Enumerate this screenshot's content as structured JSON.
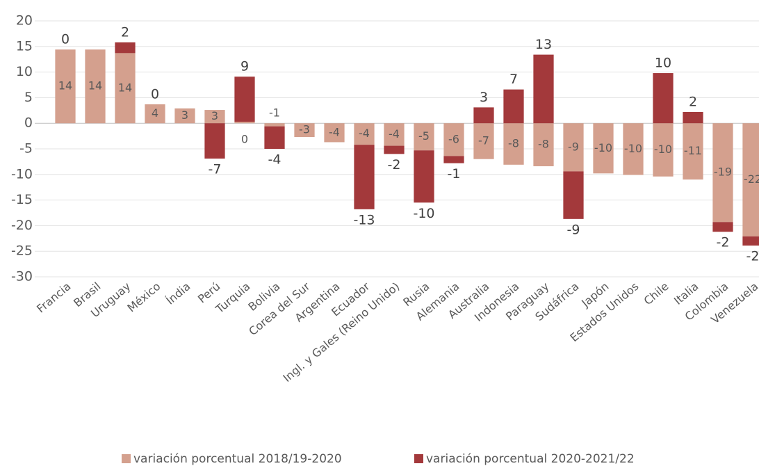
{
  "chart_data": {
    "type": "bar",
    "stacked": true,
    "categories": [
      "Francia",
      "Brasil",
      "Uruguay",
      "México",
      "Índia",
      "Perú",
      "Turquia",
      "Bolivia",
      "Corea del Sur",
      "Argentina",
      "Ecuador",
      "Ingl. y Gales (Reino Unido)",
      "Rusia",
      "Alemania",
      "Australia",
      "Indonesia",
      "Paraguay",
      "Sudáfrica",
      "Japón",
      "Estados Unidos",
      "Chile",
      "Italia",
      "Colombia",
      "Venezuela"
    ],
    "series": [
      {
        "name": "variación porcentual 2018/19-2020",
        "color": "#d4a08e",
        "values": [
          14.4,
          14.4,
          13.7,
          3.7,
          2.9,
          2.6,
          0.3,
          -0.6,
          -2.7,
          -3.7,
          -4.2,
          -4.4,
          -5.3,
          -6.4,
          -7.0,
          -8.1,
          -8.4,
          -9.4,
          -9.8,
          -10.1,
          -10.4,
          -11.0,
          -19.3,
          -22.1
        ],
        "value_labels": [
          "14",
          "14",
          "14",
          "4",
          "3",
          "3",
          "0",
          "-1",
          "-3",
          "-4",
          "-4",
          "-4",
          "-5",
          "-6",
          "-7",
          "-8",
          "-8",
          "-9",
          "-10",
          "-10",
          "-10",
          "-11",
          "-19",
          "-22"
        ]
      },
      {
        "name": "variación porcentual 2020-2021/22",
        "color": "#a3393b",
        "values": [
          0,
          null,
          2.1,
          0,
          null,
          -6.9,
          8.8,
          -4.4,
          null,
          null,
          -12.6,
          -1.6,
          -10.2,
          -1.4,
          3.1,
          6.6,
          13.4,
          -9.3,
          null,
          null,
          9.8,
          2.2,
          -1.9,
          -1.8
        ],
        "value_labels": [
          "0",
          null,
          "2",
          "0",
          null,
          "-7",
          "9",
          "-4",
          null,
          null,
          "-13",
          "-2",
          "-10",
          "-1",
          "3",
          "7",
          "13",
          "-9",
          null,
          null,
          "10",
          "2",
          "-2",
          "-2"
        ]
      }
    ],
    "ylim": [
      -30,
      20
    ],
    "yticks": [
      -30,
      -25,
      -20,
      -15,
      -10,
      -5,
      0,
      5,
      10,
      15,
      20
    ],
    "grid": true,
    "legend": "bottom"
  }
}
